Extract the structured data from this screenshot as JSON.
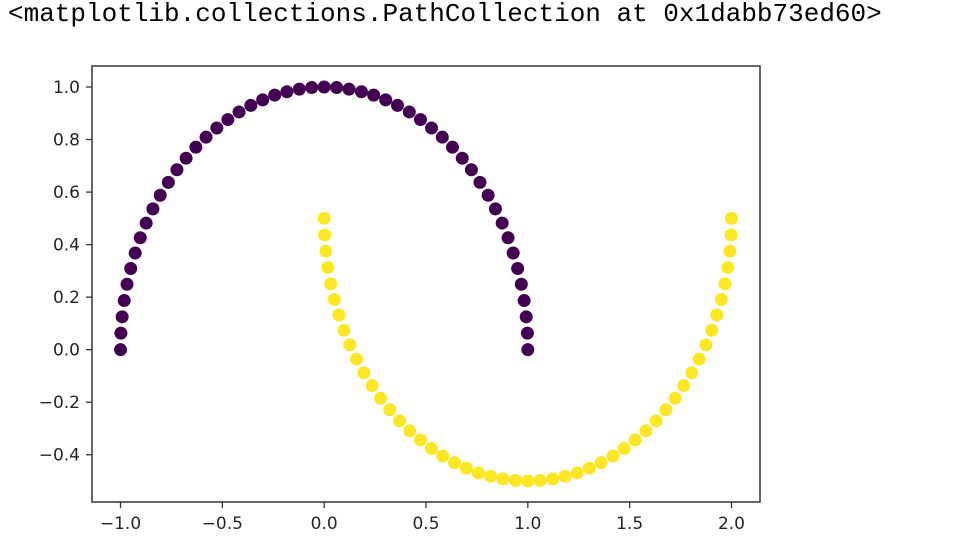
{
  "output_repr": "<matplotlib.collections.PathCollection at 0x1dabb73ed60>",
  "chart_data": {
    "type": "scatter",
    "title": "",
    "xlabel": "",
    "ylabel": "",
    "xlim": [
      -1.14,
      2.14
    ],
    "ylim": [
      -0.58,
      1.08
    ],
    "xticks": [
      -1.0,
      -0.5,
      0.0,
      0.5,
      1.0,
      1.5,
      2.0
    ],
    "xtick_labels": [
      "−1.0",
      "−0.5",
      "0.0",
      "0.5",
      "1.0",
      "1.5",
      "2.0"
    ],
    "yticks": [
      -0.4,
      -0.2,
      0.0,
      0.2,
      0.4,
      0.6,
      0.8,
      1.0
    ],
    "ytick_labels": [
      "−0.4",
      "−0.2",
      "0.0",
      "0.2",
      "0.4",
      "0.6",
      "0.8",
      "1.0"
    ],
    "grid": false,
    "series": [
      {
        "color": "#440154",
        "x": [
          1.0,
          0.998,
          0.992,
          0.982,
          0.968,
          0.95,
          0.928,
          0.903,
          0.874,
          0.841,
          0.805,
          0.765,
          0.723,
          0.678,
          0.63,
          0.58,
          0.527,
          0.473,
          0.418,
          0.36,
          0.302,
          0.243,
          0.183,
          0.122,
          0.061,
          0.0,
          -0.061,
          -0.122,
          -0.183,
          -0.243,
          -0.302,
          -0.36,
          -0.418,
          -0.473,
          -0.527,
          -0.58,
          -0.63,
          -0.678,
          -0.723,
          -0.765,
          -0.805,
          -0.841,
          -0.874,
          -0.903,
          -0.928,
          -0.95,
          -0.968,
          -0.982,
          -0.992,
          -0.998,
          -1.0
        ],
        "y": [
          0.0,
          0.063,
          0.125,
          0.187,
          0.249,
          0.309,
          0.368,
          0.426,
          0.482,
          0.536,
          0.588,
          0.637,
          0.685,
          0.729,
          0.771,
          0.809,
          0.844,
          0.876,
          0.905,
          0.93,
          0.951,
          0.969,
          0.982,
          0.992,
          0.998,
          1.0,
          0.998,
          0.992,
          0.982,
          0.969,
          0.951,
          0.93,
          0.905,
          0.876,
          0.844,
          0.809,
          0.771,
          0.729,
          0.685,
          0.637,
          0.588,
          0.536,
          0.482,
          0.426,
          0.368,
          0.309,
          0.249,
          0.187,
          0.125,
          0.063,
          0.0
        ]
      },
      {
        "color": "#fde725",
        "x": [
          0.0,
          0.002,
          0.008,
          0.018,
          0.032,
          0.05,
          0.072,
          0.097,
          0.126,
          0.159,
          0.195,
          0.235,
          0.277,
          0.322,
          0.37,
          0.42,
          0.473,
          0.527,
          0.582,
          0.64,
          0.698,
          0.757,
          0.817,
          0.878,
          0.939,
          1.0,
          1.061,
          1.122,
          1.183,
          1.243,
          1.302,
          1.36,
          1.418,
          1.473,
          1.527,
          1.58,
          1.63,
          1.678,
          1.723,
          1.765,
          1.805,
          1.841,
          1.874,
          1.903,
          1.928,
          1.95,
          1.968,
          1.982,
          1.992,
          1.998,
          2.0
        ],
        "y": [
          0.5,
          0.437,
          0.375,
          0.313,
          0.251,
          0.191,
          0.132,
          0.074,
          0.018,
          -0.036,
          -0.088,
          -0.137,
          -0.185,
          -0.229,
          -0.271,
          -0.309,
          -0.344,
          -0.376,
          -0.405,
          -0.43,
          -0.451,
          -0.469,
          -0.482,
          -0.492,
          -0.498,
          -0.5,
          -0.498,
          -0.492,
          -0.482,
          -0.469,
          -0.451,
          -0.43,
          -0.405,
          -0.376,
          -0.344,
          -0.309,
          -0.271,
          -0.229,
          -0.185,
          -0.137,
          -0.088,
          -0.036,
          0.018,
          0.074,
          0.132,
          0.191,
          0.251,
          0.313,
          0.375,
          0.437,
          0.5
        ]
      }
    ]
  }
}
